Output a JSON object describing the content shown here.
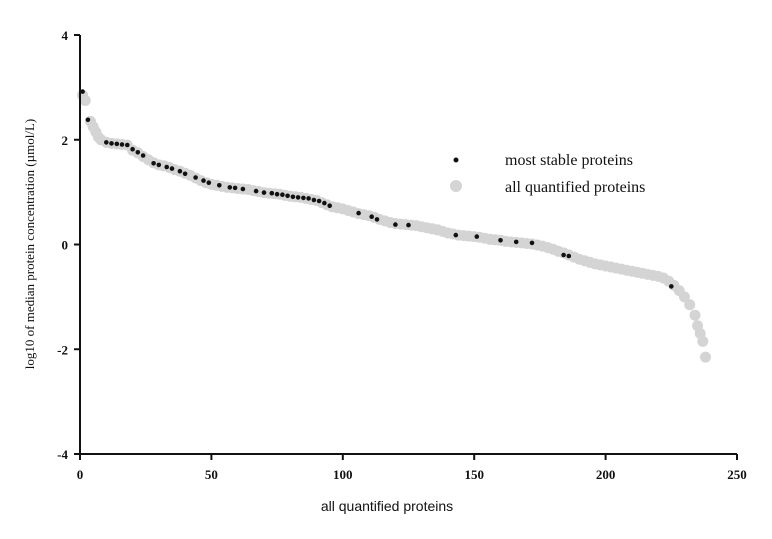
{
  "chart_data": {
    "type": "scatter",
    "xlabel": "all quantified proteins",
    "ylabel": "log10 of median protein concentration (µmol/L)",
    "xlim": [
      0,
      250
    ],
    "ylim": [
      -4,
      4
    ],
    "xticks": [
      "0",
      "50",
      "100",
      "150",
      "200",
      "250"
    ],
    "yticks": [
      "4",
      "2",
      "0",
      "-2",
      "-4"
    ],
    "legend_position": "top-right",
    "series": [
      {
        "name": "all quantified proteins",
        "color": "#d4d4d4",
        "marker": "large-circle",
        "points": [
          [
            1,
            2.85
          ],
          [
            2,
            2.75
          ],
          [
            4,
            2.35
          ],
          [
            5,
            2.25
          ],
          [
            6,
            2.15
          ],
          [
            7,
            2.05
          ],
          [
            8,
            2.0
          ],
          [
            10,
            1.95
          ],
          [
            12,
            1.93
          ],
          [
            14,
            1.92
          ],
          [
            16,
            1.91
          ],
          [
            18,
            1.9
          ],
          [
            20,
            1.8
          ],
          [
            22,
            1.75
          ],
          [
            24,
            1.68
          ],
          [
            26,
            1.62
          ],
          [
            28,
            1.56
          ],
          [
            30,
            1.52
          ],
          [
            32,
            1.5
          ],
          [
            34,
            1.47
          ],
          [
            36,
            1.43
          ],
          [
            38,
            1.4
          ],
          [
            40,
            1.36
          ],
          [
            42,
            1.32
          ],
          [
            44,
            1.27
          ],
          [
            46,
            1.22
          ],
          [
            48,
            1.18
          ],
          [
            50,
            1.15
          ],
          [
            52,
            1.13
          ],
          [
            54,
            1.11
          ],
          [
            56,
            1.09
          ],
          [
            58,
            1.08
          ],
          [
            60,
            1.07
          ],
          [
            62,
            1.06
          ],
          [
            64,
            1.05
          ],
          [
            66,
            1.03
          ],
          [
            68,
            1.01
          ],
          [
            70,
            0.99
          ],
          [
            72,
            0.98
          ],
          [
            74,
            0.97
          ],
          [
            76,
            0.96
          ],
          [
            78,
            0.94
          ],
          [
            80,
            0.92
          ],
          [
            82,
            0.91
          ],
          [
            84,
            0.9
          ],
          [
            86,
            0.88
          ],
          [
            88,
            0.86
          ],
          [
            90,
            0.84
          ],
          [
            92,
            0.8
          ],
          [
            94,
            0.76
          ],
          [
            96,
            0.72
          ],
          [
            98,
            0.7
          ],
          [
            100,
            0.68
          ],
          [
            102,
            0.65
          ],
          [
            104,
            0.62
          ],
          [
            106,
            0.59
          ],
          [
            108,
            0.57
          ],
          [
            110,
            0.55
          ],
          [
            112,
            0.52
          ],
          [
            114,
            0.48
          ],
          [
            116,
            0.45
          ],
          [
            118,
            0.42
          ],
          [
            120,
            0.4
          ],
          [
            122,
            0.39
          ],
          [
            124,
            0.38
          ],
          [
            126,
            0.37
          ],
          [
            128,
            0.36
          ],
          [
            130,
            0.34
          ],
          [
            132,
            0.32
          ],
          [
            134,
            0.3
          ],
          [
            136,
            0.28
          ],
          [
            138,
            0.25
          ],
          [
            140,
            0.22
          ],
          [
            142,
            0.2
          ],
          [
            144,
            0.18
          ],
          [
            146,
            0.17
          ],
          [
            148,
            0.16
          ],
          [
            150,
            0.15
          ],
          [
            152,
            0.14
          ],
          [
            154,
            0.12
          ],
          [
            156,
            0.1
          ],
          [
            158,
            0.09
          ],
          [
            160,
            0.08
          ],
          [
            162,
            0.06
          ],
          [
            164,
            0.05
          ],
          [
            166,
            0.04
          ],
          [
            168,
            0.03
          ],
          [
            170,
            0.02
          ],
          [
            172,
            0.01
          ],
          [
            174,
            -0.01
          ],
          [
            176,
            -0.03
          ],
          [
            178,
            -0.06
          ],
          [
            180,
            -0.09
          ],
          [
            182,
            -0.13
          ],
          [
            184,
            -0.16
          ],
          [
            186,
            -0.2
          ],
          [
            188,
            -0.24
          ],
          [
            190,
            -0.28
          ],
          [
            192,
            -0.31
          ],
          [
            194,
            -0.34
          ],
          [
            196,
            -0.37
          ],
          [
            198,
            -0.39
          ],
          [
            200,
            -0.41
          ],
          [
            202,
            -0.43
          ],
          [
            204,
            -0.45
          ],
          [
            206,
            -0.47
          ],
          [
            208,
            -0.49
          ],
          [
            210,
            -0.51
          ],
          [
            212,
            -0.53
          ],
          [
            214,
            -0.55
          ],
          [
            216,
            -0.57
          ],
          [
            218,
            -0.59
          ],
          [
            220,
            -0.61
          ],
          [
            222,
            -0.64
          ],
          [
            224,
            -0.7
          ],
          [
            226,
            -0.78
          ],
          [
            228,
            -0.88
          ],
          [
            230,
            -1.0
          ],
          [
            232,
            -1.15
          ],
          [
            234,
            -1.35
          ],
          [
            235,
            -1.55
          ],
          [
            236,
            -1.7
          ],
          [
            237,
            -1.85
          ],
          [
            238,
            -2.15
          ]
        ]
      },
      {
        "name": "most stable proteins",
        "color": "#111111",
        "marker": "small-dot",
        "points": [
          [
            1,
            2.92
          ],
          [
            3,
            2.38
          ],
          [
            10,
            1.95
          ],
          [
            12,
            1.93
          ],
          [
            14,
            1.92
          ],
          [
            16,
            1.91
          ],
          [
            18,
            1.9
          ],
          [
            20,
            1.82
          ],
          [
            22,
            1.76
          ],
          [
            24,
            1.7
          ],
          [
            28,
            1.55
          ],
          [
            30,
            1.52
          ],
          [
            33,
            1.48
          ],
          [
            35,
            1.45
          ],
          [
            38,
            1.4
          ],
          [
            40,
            1.35
          ],
          [
            44,
            1.28
          ],
          [
            47,
            1.22
          ],
          [
            49,
            1.18
          ],
          [
            53,
            1.13
          ],
          [
            57,
            1.09
          ],
          [
            59,
            1.08
          ],
          [
            62,
            1.06
          ],
          [
            67,
            1.02
          ],
          [
            70,
            0.99
          ],
          [
            73,
            0.98
          ],
          [
            75,
            0.96
          ],
          [
            77,
            0.95
          ],
          [
            79,
            0.93
          ],
          [
            81,
            0.91
          ],
          [
            83,
            0.9
          ],
          [
            85,
            0.89
          ],
          [
            87,
            0.88
          ],
          [
            89,
            0.85
          ],
          [
            91,
            0.83
          ],
          [
            93,
            0.79
          ],
          [
            95,
            0.74
          ],
          [
            106,
            0.6
          ],
          [
            111,
            0.53
          ],
          [
            113,
            0.48
          ],
          [
            120,
            0.38
          ],
          [
            125,
            0.37
          ],
          [
            143,
            0.18
          ],
          [
            151,
            0.15
          ],
          [
            160,
            0.08
          ],
          [
            166,
            0.05
          ],
          [
            172,
            0.03
          ],
          [
            184,
            -0.2
          ],
          [
            186,
            -0.22
          ],
          [
            225,
            -0.8
          ]
        ]
      }
    ]
  }
}
